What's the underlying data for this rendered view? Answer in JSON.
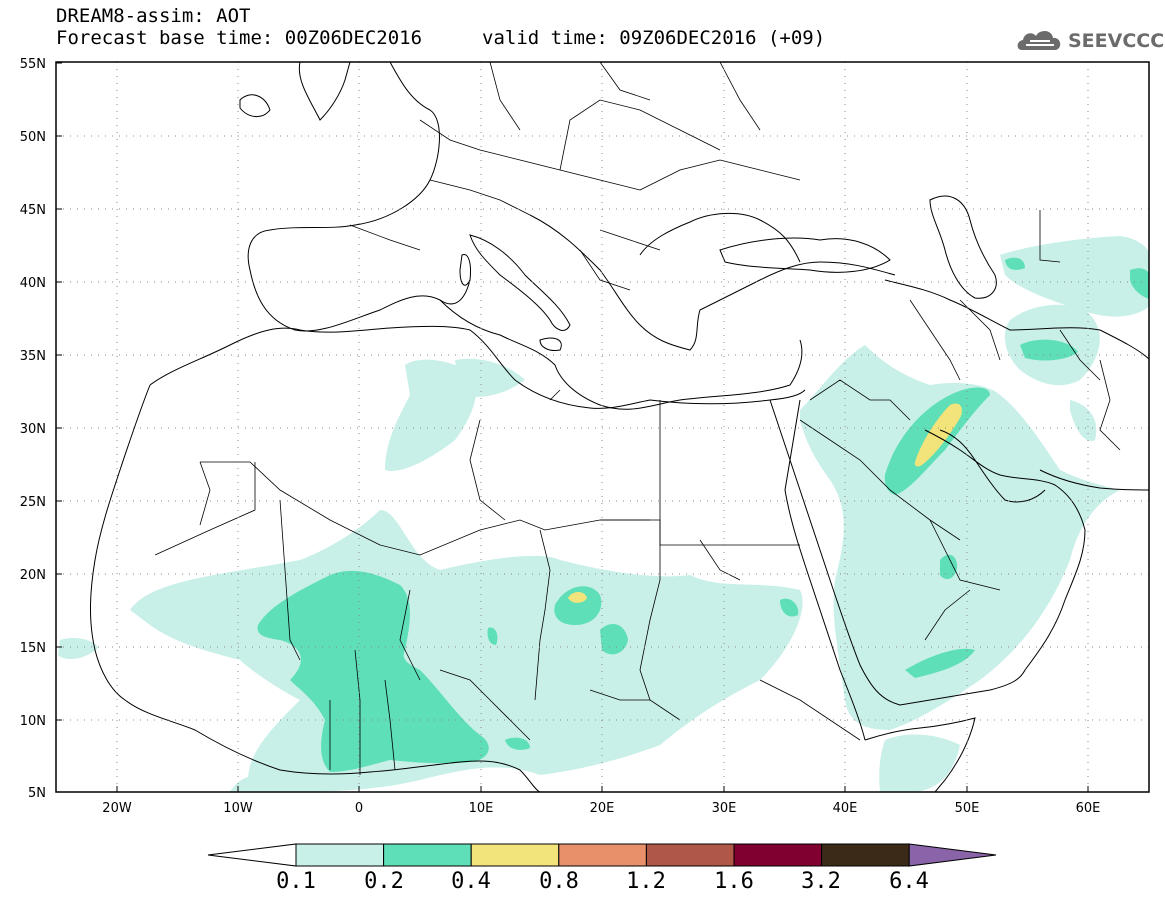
{
  "header": {
    "line1": "DREAM8-assim: AOT",
    "line2": "Forecast base time: 00Z06DEC2016",
    "valid": "valid time: 09Z06DEC2016 (+09)"
  },
  "logo": {
    "text": "SEEVCCC",
    "icon": "cloud-logo-icon"
  },
  "axes": {
    "lat_labels": [
      "55N",
      "50N",
      "45N",
      "40N",
      "35N",
      "30N",
      "25N",
      "20N",
      "15N",
      "10N",
      "5N"
    ],
    "lon_labels": [
      "20W",
      "10W",
      "0",
      "10E",
      "20E",
      "30E",
      "40E",
      "50E",
      "60E"
    ]
  },
  "colorbar": {
    "levels": [
      "0.1",
      "0.2",
      "0.4",
      "0.8",
      "1.2",
      "1.6",
      "3.2",
      "6.4"
    ],
    "colors": [
      "#ffffff",
      "#c8f0e8",
      "#5edfb8",
      "#f2e37a",
      "#e8906a",
      "#b05848",
      "#800030",
      "#3b2a18",
      "#8a64a8"
    ]
  },
  "colors": {
    "aot_0_1": "#c8f0e8",
    "aot_0_2": "#5edfb8",
    "aot_0_4": "#f2e37a"
  }
}
